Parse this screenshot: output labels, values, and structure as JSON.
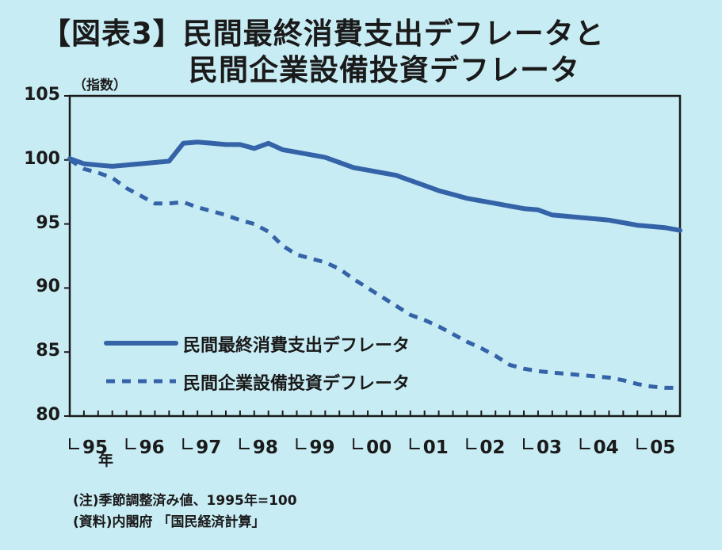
{
  "header": {
    "title_line1": "【図表3】民間最終消費支出デフレータと",
    "title_line2": "民間企業設備投資デフレータ"
  },
  "notes": {
    "unit": "（指数）",
    "year_unit": "年",
    "note": "(注)季節調整済み値、1995年=100",
    "source": "(資料)内閣府 「国民経済計算」"
  },
  "colors": {
    "background": "#c8ecf4",
    "series": "#3563a8",
    "axis": "#1a1a1a"
  },
  "chart_data": {
    "type": "line",
    "title": "【図表3】民間最終消費支出デフレータと民間企業設備投資デフレータ",
    "ylabel": "（指数）",
    "xlabel": "",
    "ylim": [
      80,
      105
    ],
    "yticks": [
      80,
      85,
      90,
      95,
      100,
      105
    ],
    "x_tick_labels": [
      "95",
      "96",
      "97",
      "98",
      "99",
      "00",
      "01",
      "02",
      "03",
      "04",
      "05"
    ],
    "x_unit": "年",
    "x_range": [
      1995.0,
      2005.75
    ],
    "grid": false,
    "legend": "inside lower-left",
    "series": [
      {
        "name": "民間最終消費支出デフレータ",
        "style": "solid",
        "x": [
          1995.0,
          1995.25,
          1995.5,
          1995.75,
          1996.0,
          1996.25,
          1996.5,
          1996.75,
          1997.0,
          1997.25,
          1997.5,
          1997.75,
          1998.0,
          1998.25,
          1998.5,
          1998.75,
          1999.0,
          1999.25,
          1999.5,
          1999.75,
          2000.0,
          2000.25,
          2000.5,
          2000.75,
          2001.0,
          2001.25,
          2001.5,
          2001.75,
          2002.0,
          2002.25,
          2002.5,
          2002.75,
          2003.0,
          2003.25,
          2003.5,
          2003.75,
          2004.0,
          2004.25,
          2004.5,
          2004.75,
          2005.0,
          2005.25,
          2005.5,
          2005.75
        ],
        "values": [
          100.1,
          99.7,
          99.6,
          99.5,
          99.6,
          99.7,
          99.8,
          99.9,
          101.3,
          101.4,
          101.3,
          101.2,
          101.2,
          100.9,
          101.3,
          100.8,
          100.6,
          100.4,
          100.2,
          99.8,
          99.4,
          99.2,
          99.0,
          98.8,
          98.4,
          98.0,
          97.6,
          97.3,
          97.0,
          96.8,
          96.6,
          96.4,
          96.2,
          96.1,
          95.7,
          95.6,
          95.5,
          95.4,
          95.3,
          95.1,
          94.9,
          94.8,
          94.7,
          94.5
        ]
      },
      {
        "name": "民間企業設備投資デフレータ",
        "style": "dashed",
        "x": [
          1995.0,
          1995.25,
          1995.5,
          1995.75,
          1996.0,
          1996.25,
          1996.5,
          1996.75,
          1997.0,
          1997.25,
          1997.5,
          1997.75,
          1998.0,
          1998.25,
          1998.5,
          1998.75,
          1999.0,
          1999.25,
          1999.5,
          1999.75,
          2000.0,
          2000.25,
          2000.5,
          2000.75,
          2001.0,
          2001.25,
          2001.5,
          2001.75,
          2002.0,
          2002.25,
          2002.5,
          2002.75,
          2003.0,
          2003.25,
          2003.5,
          2003.75,
          2004.0,
          2004.25,
          2004.5,
          2004.75,
          2005.0,
          2005.25,
          2005.5,
          2005.75
        ],
        "values": [
          100.0,
          99.3,
          99.0,
          98.6,
          97.8,
          97.2,
          96.6,
          96.6,
          96.7,
          96.3,
          96.0,
          95.7,
          95.3,
          95.0,
          94.4,
          93.3,
          92.6,
          92.3,
          92.0,
          91.5,
          90.7,
          90.0,
          89.3,
          88.6,
          87.9,
          87.5,
          87.0,
          86.4,
          85.8,
          85.3,
          84.7,
          84.0,
          83.7,
          83.5,
          83.4,
          83.3,
          83.2,
          83.1,
          83.0,
          82.8,
          82.5,
          82.3,
          82.2,
          82.2
        ]
      }
    ]
  }
}
